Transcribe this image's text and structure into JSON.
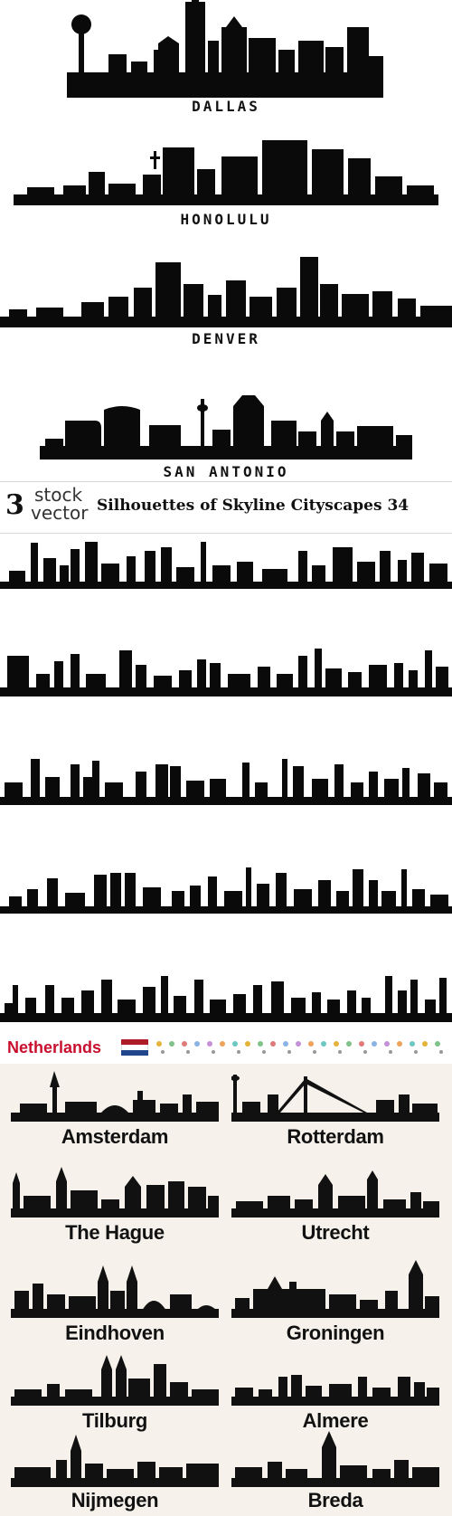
{
  "us_cities": [
    {
      "name": "DALLAS"
    },
    {
      "name": "HONOLULU"
    },
    {
      "name": "DENVER"
    },
    {
      "name": "SAN ANTONIO"
    }
  ],
  "banner": {
    "logo_number": "3",
    "logo_top": "stock",
    "logo_bottom": "vector",
    "title": "Silhouettes of Skyline Cityscapes 34"
  },
  "netherlands": {
    "title": "Netherlands",
    "flag_colors": [
      "#ae1c28",
      "#ffffff",
      "#21468b"
    ],
    "cities": [
      {
        "name": "Amsterdam"
      },
      {
        "name": "Rotterdam"
      },
      {
        "name": "The Hague"
      },
      {
        "name": "Utrecht"
      },
      {
        "name": "Eindhoven"
      },
      {
        "name": "Groningen"
      },
      {
        "name": "Tilburg"
      },
      {
        "name": "Almere"
      },
      {
        "name": "Nijmegen"
      },
      {
        "name": "Breda"
      }
    ]
  },
  "colors": {
    "silhouette": "#0a0a0a",
    "nl_background": "#f6f1ea",
    "nl_title": "#c8102e"
  }
}
